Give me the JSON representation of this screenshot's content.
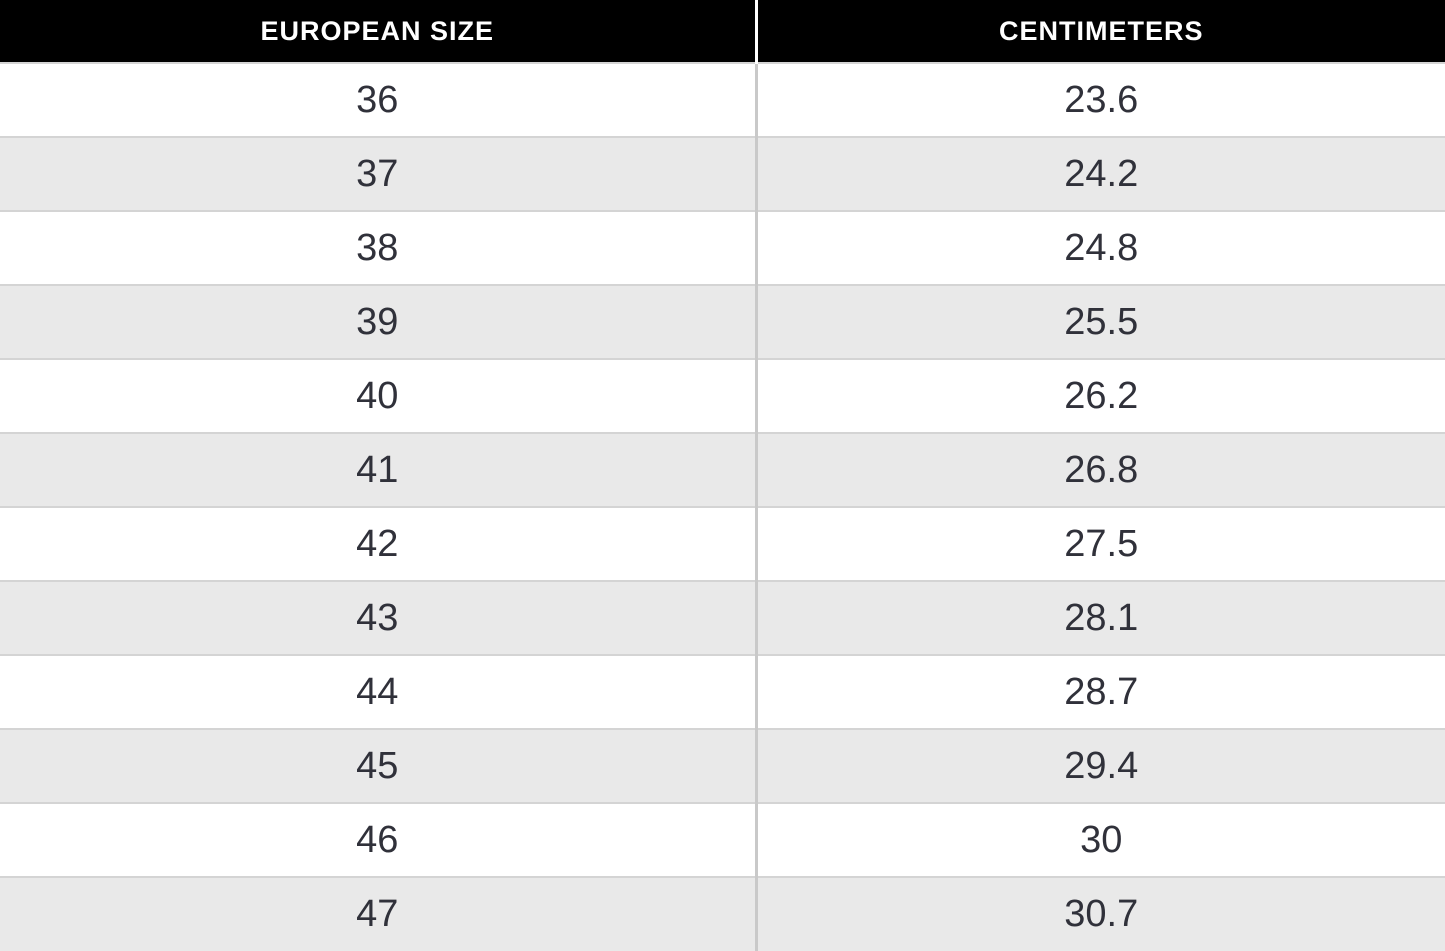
{
  "table": {
    "headers": [
      {
        "label": "EUROPEAN SIZE"
      },
      {
        "label": "CENTIMETERS"
      }
    ],
    "rows": [
      {
        "eu": "36",
        "cm": "23.6"
      },
      {
        "eu": "37",
        "cm": "24.2"
      },
      {
        "eu": "38",
        "cm": "24.8"
      },
      {
        "eu": "39",
        "cm": "25.5"
      },
      {
        "eu": "40",
        "cm": "26.2"
      },
      {
        "eu": "41",
        "cm": "26.8"
      },
      {
        "eu": "42",
        "cm": "27.5"
      },
      {
        "eu": "43",
        "cm": "28.1"
      },
      {
        "eu": "44",
        "cm": "28.7"
      },
      {
        "eu": "45",
        "cm": "29.4"
      },
      {
        "eu": "46",
        "cm": "30"
      },
      {
        "eu": "47",
        "cm": "30.7"
      }
    ]
  },
  "colors": {
    "header_bg": "#000000",
    "header_text": "#ffffff",
    "row_bg": "#ffffff",
    "row_alt_bg": "#e9e9e9",
    "cell_text": "#30313a",
    "row_border": "#d4d4d4",
    "column_divider": "#c9c9c9",
    "header_divider": "#ffffff"
  },
  "chart_data": {
    "type": "table",
    "columns": [
      "EUROPEAN SIZE",
      "CENTIMETERS"
    ],
    "rows": [
      [
        36,
        23.6
      ],
      [
        37,
        24.2
      ],
      [
        38,
        24.8
      ],
      [
        39,
        25.5
      ],
      [
        40,
        26.2
      ],
      [
        41,
        26.8
      ],
      [
        42,
        27.5
      ],
      [
        43,
        28.1
      ],
      [
        44,
        28.7
      ],
      [
        45,
        29.4
      ],
      [
        46,
        30
      ],
      [
        47,
        30.7
      ]
    ]
  }
}
